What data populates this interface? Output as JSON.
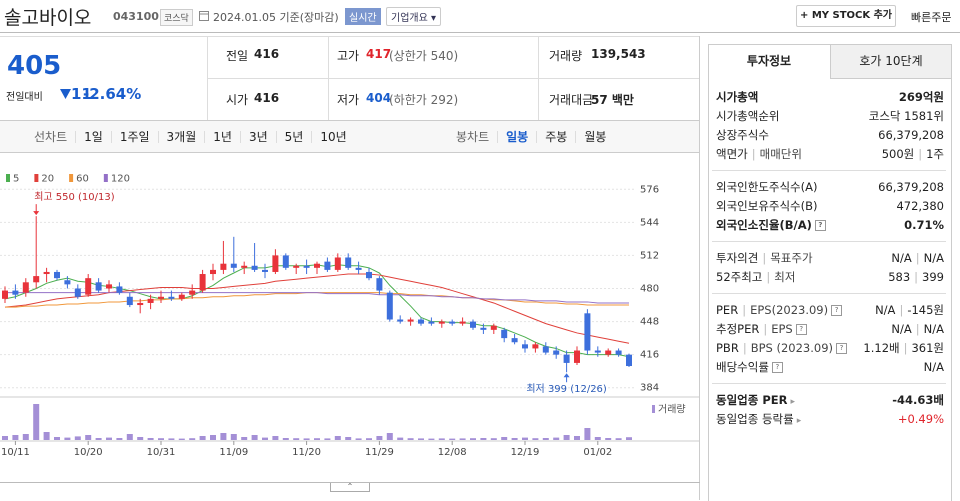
{
  "header": {
    "name": "솔고바이오",
    "code": "043100",
    "market": "코스닥",
    "date": "2024.01.05 기준(장마감)",
    "realtime": "실시간",
    "overview": "기업개요",
    "add_button": "MY STOCK 추가",
    "quick_order": "빠른주문"
  },
  "quote": {
    "price": "405",
    "change_label": "전일대비",
    "change": "11",
    "change_pct": "-2.64%",
    "cells": [
      {
        "label": "전일",
        "value": "416"
      },
      {
        "label": "고가",
        "value": "417",
        "note": "(상한가 540)"
      },
      {
        "label": "거래량",
        "value": "139,543"
      },
      {
        "label": "시가",
        "value": "416"
      },
      {
        "label": "저가",
        "value": "404",
        "note": "(하한가 292)"
      },
      {
        "label": "거래대금",
        "value": "57 백만"
      }
    ]
  },
  "line_tabs": {
    "label": "선차트",
    "items": [
      "1일",
      "1주일",
      "3개월",
      "1년",
      "3년",
      "5년",
      "10년"
    ]
  },
  "candle_tabs": {
    "label": "봉차트",
    "items": [
      "일봉",
      "주봉",
      "월봉"
    ],
    "active": 0
  },
  "info_panel": {
    "tabs": [
      "투자정보",
      "호가 10단계"
    ],
    "active": 0,
    "groups": [
      [
        {
          "label": [
            "시가총액"
          ],
          "value": [
            "269억원"
          ],
          "bold": true
        },
        {
          "label": [
            "시가총액순위"
          ],
          "value": [
            "코스닥 1581위"
          ]
        },
        {
          "label": [
            "상장주식수"
          ],
          "value": [
            "66,379,208"
          ]
        },
        {
          "label": [
            "액면가",
            "매매단위"
          ],
          "value": [
            "500원",
            "1주"
          ]
        }
      ],
      [
        {
          "label": [
            "외국인한도주식수(A)"
          ],
          "value": [
            "66,379,208"
          ]
        },
        {
          "label": [
            "외국인보유주식수(B)"
          ],
          "value": [
            "472,380"
          ]
        },
        {
          "label": [
            "외국인소진율(B/A)"
          ],
          "value": [
            "0.71%"
          ],
          "bold": true,
          "help": true
        }
      ],
      [
        {
          "label": [
            "투자의견",
            "목표주가"
          ],
          "value": [
            "N/A",
            "N/A"
          ]
        },
        {
          "label": [
            "52주최고",
            "최저"
          ],
          "value": [
            "583",
            "399"
          ]
        }
      ],
      [
        {
          "label": [
            "PER",
            "EPS(2023.09)"
          ],
          "value": [
            "N/A",
            "-145원"
          ],
          "help": true
        },
        {
          "label": [
            "추정PER",
            "EPS"
          ],
          "value": [
            "N/A",
            "N/A"
          ],
          "help": true
        },
        {
          "label": [
            "PBR",
            "BPS (2023.09)"
          ],
          "value": [
            "1.12배",
            "361원"
          ],
          "help": true
        },
        {
          "label": [
            "배당수익률"
          ],
          "value": [
            "N/A"
          ],
          "help": true
        }
      ],
      [
        {
          "label": [
            "동일업종 PER"
          ],
          "value": [
            "-44.63배"
          ],
          "bold": true,
          "arrow": true
        },
        {
          "label": [
            "동일업종 등락률"
          ],
          "value": [
            "+0.49%"
          ],
          "arrow": true,
          "color": "#e0242b"
        }
      ]
    ]
  },
  "chart_data": {
    "type": "candlestick",
    "categories": [
      null,
      "10/11",
      null,
      null,
      null,
      null,
      null,
      null,
      "10/20",
      null,
      null,
      null,
      null,
      null,
      null,
      "10/31",
      null,
      null,
      null,
      null,
      null,
      null,
      "11/09",
      null,
      null,
      null,
      null,
      null,
      null,
      "11/20",
      null,
      null,
      null,
      null,
      null,
      null,
      "11/29",
      null,
      null,
      null,
      null,
      null,
      null,
      "12/08",
      null,
      null,
      null,
      null,
      null,
      null,
      "12/19",
      null,
      null,
      null,
      null,
      null,
      null,
      "01/02",
      null,
      null,
      null
    ],
    "open": [
      470,
      478,
      476,
      486,
      494,
      496,
      488,
      480,
      474,
      486,
      480,
      482,
      472,
      464,
      466,
      470,
      472,
      470,
      474,
      478,
      494,
      498,
      504,
      500,
      502,
      498,
      496,
      512,
      500,
      502,
      500,
      506,
      498,
      510,
      500,
      496,
      490,
      476,
      450,
      448,
      450,
      448,
      446,
      448,
      446,
      448,
      442,
      440,
      440,
      432,
      426,
      422,
      424,
      420,
      416,
      408,
      456,
      420,
      416,
      420,
      416
    ],
    "high": [
      482,
      484,
      490,
      550,
      500,
      498,
      492,
      484,
      494,
      490,
      488,
      486,
      476,
      470,
      474,
      478,
      478,
      476,
      484,
      498,
      504,
      526,
      530,
      506,
      524,
      504,
      518,
      514,
      504,
      508,
      506,
      510,
      514,
      514,
      506,
      500,
      492,
      478,
      454,
      452,
      452,
      452,
      450,
      450,
      452,
      450,
      446,
      446,
      442,
      436,
      430,
      428,
      428,
      424,
      420,
      424,
      460,
      424,
      422,
      422,
      417
    ],
    "low": [
      466,
      470,
      472,
      480,
      486,
      488,
      480,
      470,
      472,
      476,
      476,
      474,
      462,
      456,
      460,
      466,
      468,
      468,
      470,
      476,
      488,
      494,
      496,
      494,
      496,
      490,
      494,
      498,
      494,
      494,
      494,
      496,
      496,
      498,
      494,
      488,
      474,
      448,
      446,
      444,
      444,
      444,
      442,
      444,
      444,
      440,
      436,
      436,
      428,
      426,
      418,
      418,
      416,
      412,
      399,
      406,
      416,
      414,
      414,
      414,
      404
    ],
    "close": [
      478,
      474,
      486,
      492,
      496,
      490,
      484,
      472,
      490,
      478,
      484,
      476,
      464,
      466,
      470,
      472,
      470,
      474,
      478,
      494,
      498,
      504,
      500,
      502,
      498,
      496,
      512,
      500,
      502,
      500,
      504,
      498,
      510,
      500,
      498,
      490,
      478,
      450,
      448,
      450,
      446,
      446,
      448,
      446,
      448,
      442,
      440,
      444,
      432,
      428,
      422,
      426,
      418,
      416,
      408,
      420,
      420,
      418,
      420,
      416,
      405
    ],
    "series": [
      {
        "name": "5",
        "color": "#4caf50",
        "values": [
          470,
          472,
          476,
          480,
          485,
          488,
          490,
          487,
          486,
          483,
          482,
          480,
          478,
          475,
          472,
          470,
          470,
          470,
          473,
          478,
          483,
          490,
          495,
          500,
          500,
          500,
          502,
          502,
          502,
          502,
          503,
          501,
          503,
          502,
          502,
          500,
          495,
          483,
          473,
          463,
          452,
          448,
          448,
          447,
          447,
          446,
          444,
          444,
          441,
          437,
          433,
          428,
          424,
          422,
          418,
          418,
          416,
          416,
          416,
          416,
          414
        ]
      },
      {
        "name": "20",
        "color": "#e0403a",
        "values": [
          462,
          463,
          464,
          466,
          468,
          470,
          471,
          472,
          473,
          474,
          476,
          477,
          478,
          479,
          480,
          481,
          481,
          481,
          480,
          480,
          480,
          481,
          482,
          483,
          484,
          485,
          487,
          488,
          489,
          490,
          491,
          492,
          493,
          494,
          494,
          494,
          493,
          491,
          489,
          487,
          485,
          483,
          481,
          478,
          475,
          472,
          469,
          466,
          462,
          458,
          454,
          450,
          446,
          443,
          440,
          437,
          435,
          433,
          431,
          429,
          427
        ]
      },
      {
        "name": "60",
        "color": "#f0973b",
        "values": [
          462,
          462,
          463,
          463,
          464,
          464,
          465,
          465,
          466,
          466,
          467,
          467,
          468,
          468,
          469,
          469,
          470,
          470,
          471,
          471,
          472,
          472,
          473,
          473,
          474,
          474,
          475,
          475,
          475,
          476,
          476,
          476,
          476,
          476,
          476,
          476,
          476,
          475,
          475,
          474,
          474,
          473,
          473,
          472,
          471,
          471,
          470,
          469,
          469,
          468,
          467,
          467,
          466,
          466,
          465,
          465,
          464,
          464,
          464,
          464,
          464
        ]
      },
      {
        "name": "120",
        "color": "#9370c7",
        "values": [
          476,
          476,
          476,
          476,
          476,
          476,
          476,
          476,
          476,
          476,
          476,
          476,
          476,
          476,
          476,
          476,
          476,
          476,
          476,
          476,
          476,
          476,
          476,
          476,
          476,
          476,
          476,
          476,
          476,
          476,
          476,
          475,
          475,
          475,
          475,
          475,
          474,
          474,
          474,
          473,
          473,
          473,
          472,
          472,
          471,
          471,
          470,
          470,
          469,
          469,
          469,
          468,
          468,
          468,
          467,
          467,
          467,
          466,
          466,
          466,
          466
        ]
      }
    ],
    "volume_label": "거래량",
    "volume_color": "#a48fd6",
    "volume": [
      200000,
      250000,
      300000,
      1800000,
      400000,
      150000,
      120000,
      180000,
      250000,
      100000,
      120000,
      100000,
      300000,
      150000,
      100000,
      90000,
      80000,
      70000,
      90000,
      200000,
      250000,
      350000,
      300000,
      150000,
      250000,
      120000,
      200000,
      100000,
      90000,
      80000,
      90000,
      80000,
      200000,
      150000,
      80000,
      90000,
      200000,
      350000,
      120000,
      90000,
      80000,
      70000,
      80000,
      70000,
      80000,
      90000,
      100000,
      90000,
      150000,
      100000,
      120000,
      90000,
      100000,
      120000,
      250000,
      200000,
      600000,
      150000,
      100000,
      90000,
      139543
    ],
    "volume_ylim": [
      0,
      2000000
    ],
    "ylim": [
      376,
      584
    ],
    "yticks": [
      384,
      416,
      448,
      480,
      512,
      544,
      576
    ],
    "grid": true,
    "up_color": "#e8333a",
    "down_color": "#3d6fdc",
    "annotations": [
      {
        "text": "최고 550 (10/13)",
        "index": 3,
        "at": "high"
      },
      {
        "text": "최저 399 (12/26)",
        "index": 54,
        "at": "low"
      }
    ]
  }
}
